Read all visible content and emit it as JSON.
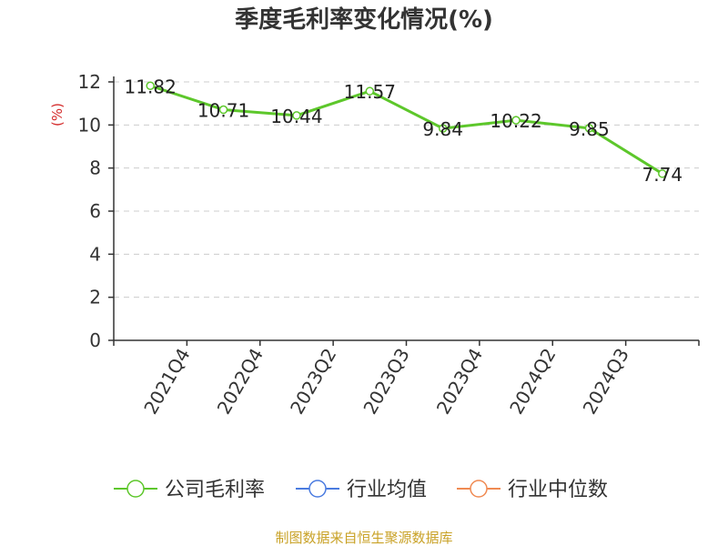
{
  "chart_data": {
    "type": "line",
    "title": "季度毛利率变化情况(%)",
    "ylabel": "(%)",
    "xlabel": "",
    "ylim": [
      0,
      12
    ],
    "yticks": [
      0,
      2,
      4,
      6,
      8,
      10,
      12
    ],
    "grid": true,
    "categories": [
      "2021Q4",
      "2022Q4",
      "2023Q2",
      "2023Q3",
      "2023Q4",
      "2024Q2",
      "2024Q3"
    ],
    "series": [
      {
        "name": "公司毛利率",
        "color": "#5dc72b",
        "points": [
          {
            "label": "",
            "value": 11.82
          },
          {
            "label": "2021Q4",
            "value": 10.71
          },
          {
            "label": "2022Q4",
            "value": 10.44
          },
          {
            "label": "2023Q2",
            "value": 11.57
          },
          {
            "label": "2023Q3",
            "value": 9.84
          },
          {
            "label": "2023Q4",
            "value": 10.22
          },
          {
            "label": "2024Q2",
            "value": 9.85
          },
          {
            "label": "2024Q3",
            "value": 7.74
          }
        ]
      }
    ],
    "legend": [
      {
        "name": "公司毛利率",
        "color": "#5dc72b"
      },
      {
        "name": "行业均值",
        "color": "#4a7be0"
      },
      {
        "name": "行业中位数",
        "color": "#f08a52"
      }
    ],
    "legend_position": "bottom",
    "source": "制图数据来自恒生聚源数据库",
    "source_color": "#c9a227"
  }
}
